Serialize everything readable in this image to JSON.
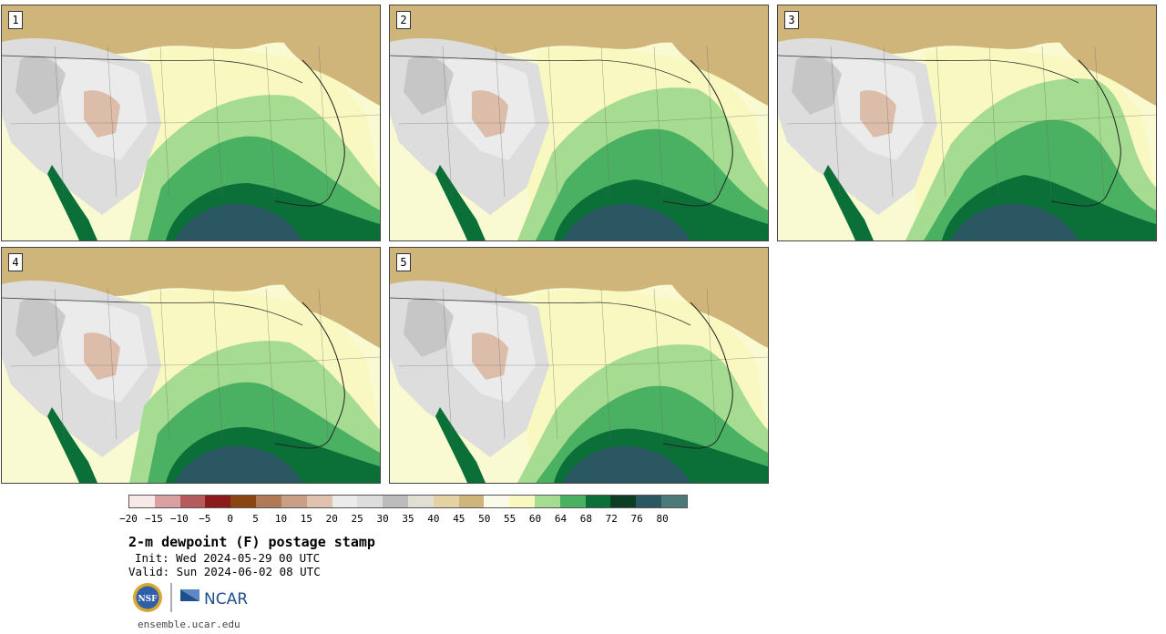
{
  "panels": [
    {
      "label": "1"
    },
    {
      "label": "2"
    },
    {
      "label": "3"
    },
    {
      "label": "4"
    },
    {
      "label": "5"
    }
  ],
  "colorbar": {
    "colors": [
      "#f7e9e8",
      "#d9a0a2",
      "#b55a5d",
      "#8b1a1a",
      "#8b4513",
      "#b07a57",
      "#c9a085",
      "#e0c3ae",
      "#ebebeb",
      "#dddddd",
      "#bcbcbc",
      "#e1dfd4",
      "#e4d2a4",
      "#cfb57a",
      "#fafae8",
      "#f8f8c0",
      "#a6dc92",
      "#4ab062",
      "#0b7038",
      "#0b3e24",
      "#2b5762",
      "#4c7a7b"
    ],
    "ticks": [
      "−20",
      "−15",
      "−10",
      "−5",
      "0",
      "5",
      "10",
      "15",
      "20",
      "25",
      "30",
      "35",
      "40",
      "45",
      "50",
      "55",
      "60",
      "64",
      "68",
      "72",
      "76",
      "80"
    ]
  },
  "title": "2-m dewpoint (F) postage stamp",
  "init": "Init: Wed 2024-05-29 00 UTC",
  "valid": "Valid: Sun 2024-06-02 08 UTC",
  "logos": {
    "nsf": "NSF",
    "ncar": "NCAR"
  },
  "url": "ensemble.ucar.edu"
}
